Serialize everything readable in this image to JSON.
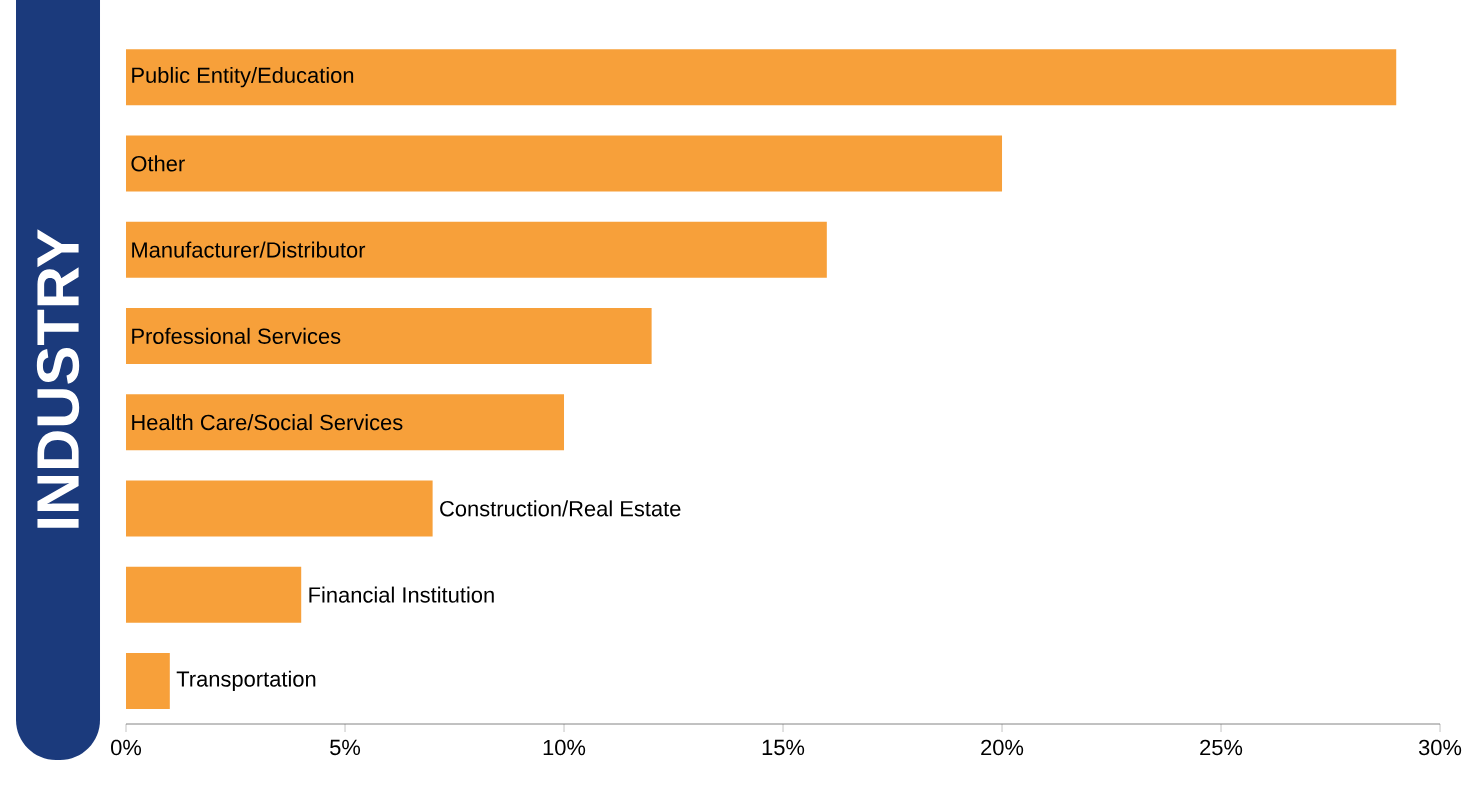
{
  "chart_data": {
    "type": "bar",
    "orientation": "horizontal",
    "ylabel": "INDUSTRY",
    "categories": [
      "Public Entity/Education",
      "Other",
      "Manufacturer/Distributor",
      "Professional Services",
      "Health Care/Social Services",
      "Construction/Real Estate",
      "Financial Institution",
      "Transportation"
    ],
    "values": [
      29,
      20,
      16,
      12,
      10,
      7,
      4,
      1
    ],
    "color": "#f7a03a",
    "xlim": [
      0,
      30
    ],
    "xticks": [
      {
        "value": 0,
        "label": "0%"
      },
      {
        "value": 5,
        "label": "5%"
      },
      {
        "value": 10,
        "label": "10%"
      },
      {
        "value": 15,
        "label": "15%"
      },
      {
        "value": 20,
        "label": "20%"
      },
      {
        "value": 25,
        "label": "25%"
      },
      {
        "value": 30,
        "label": "30%"
      }
    ],
    "grid": false
  }
}
